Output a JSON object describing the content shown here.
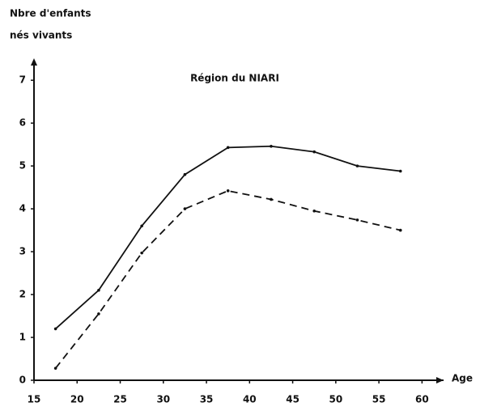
{
  "chart_data": {
    "type": "line",
    "title": "Région du NIARI",
    "y_label": [
      "Nbre d'enfants",
      "nés vivants"
    ],
    "x_label": "Age",
    "x": [
      17.5,
      22.5,
      27.5,
      32.5,
      37.5,
      42.5,
      47.5,
      52.5,
      57.5
    ],
    "series": [
      {
        "color": "#111111",
        "style": "solid",
        "values": [
          1.2,
          2.1,
          3.6,
          4.8,
          5.43,
          5.46,
          5.33,
          5.0,
          4.88
        ]
      },
      {
        "color": "#111111",
        "style": "dashed",
        "values": [
          0.28,
          1.55,
          2.97,
          4.0,
          4.42,
          4.22,
          3.95,
          3.74,
          3.5
        ]
      }
    ],
    "xlim": [
      15,
      62.5
    ],
    "xticks": [
      15,
      20,
      25,
      30,
      35,
      40,
      45,
      50,
      55,
      60
    ],
    "ylim": [
      0,
      7.4
    ],
    "yticks": [
      0,
      1,
      2,
      3,
      4,
      5,
      6,
      7
    ],
    "grid": false
  }
}
